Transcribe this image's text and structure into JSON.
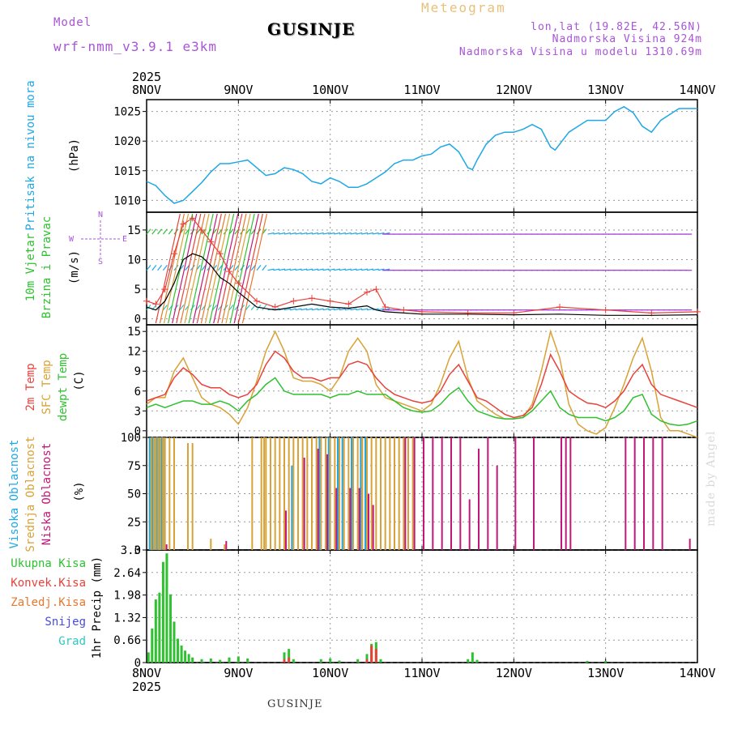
{
  "header": {
    "model_label": "Model",
    "model_name": "wrf-nmm_v3.9.1 e3km",
    "location": "GUSINJE",
    "chart_title": "Meteogram",
    "coords": "lon,lat (19.82E, 42.56N)",
    "altitude": "Nadmorska Visina 924m",
    "model_altitude": "Nadmorska Visina u modelu 1310.69m"
  },
  "footer": {
    "location": "GUSINJE",
    "watermark": "made by Angel"
  },
  "colors": {
    "pressure": "#1ea7e6",
    "wind_speed": "#000000",
    "gust": "#e8413a",
    "temp2m": "#e8413a",
    "sfc": "#d9a236",
    "dew": "#2fc12f",
    "high_cloud": "#1ea7e6",
    "mid_cloud": "#d9a236",
    "low_cloud": "#c2177a",
    "rain_total": "#2fc12f",
    "rain_conv": "#e8413a"
  },
  "chart_data": [
    {
      "type": "line",
      "panel": "pressure",
      "ylabel": [
        "Pritisak na nivou mora",
        "(hPa)"
      ],
      "ylim": [
        1008,
        1027
      ],
      "yticks": [
        1010,
        1015,
        1020,
        1025
      ],
      "x_days": [
        "8NOV",
        "9NOV",
        "10NOV",
        "11NOV",
        "12NOV",
        "13NOV",
        "14NOV"
      ],
      "x_years": [
        "2025",
        "2025"
      ],
      "x": [
        0,
        0.1,
        0.2,
        0.3,
        0.4,
        0.5,
        0.6,
        0.7,
        0.8,
        0.9,
        1.0,
        1.1,
        1.2,
        1.3,
        1.4,
        1.5,
        1.6,
        1.7,
        1.8,
        1.9,
        2.0,
        2.1,
        2.2,
        2.3,
        2.4,
        2.5,
        2.6,
        2.7,
        2.8,
        2.9,
        3.0,
        3.1,
        3.2,
        3.3,
        3.4,
        3.5,
        3.55,
        3.6,
        3.7,
        3.8,
        3.9,
        4.0,
        4.1,
        4.2,
        4.3,
        4.4,
        4.45,
        4.5,
        4.6,
        4.7,
        4.8,
        4.9,
        5.0,
        5.1,
        5.2,
        5.3,
        5.4,
        5.5,
        5.6,
        5.7,
        5.8,
        5.9,
        6.0
      ],
      "series": [
        {
          "values": [
            1013.2,
            1012.5,
            1010.8,
            1009.5,
            1010,
            1011.5,
            1013,
            1014.8,
            1016.2,
            1016.2,
            1016.5,
            1016.8,
            1015.5,
            1014.2,
            1014.5,
            1015.5,
            1015.2,
            1014.5,
            1013.2,
            1012.8,
            1013.8,
            1013.2,
            1012.2,
            1012.2,
            1012.8,
            1013.8,
            1014.8,
            1016.2,
            1016.8,
            1016.8,
            1017.5,
            1017.8,
            1019,
            1019.5,
            1018.2,
            1015.5,
            1015.2,
            1016.8,
            1019.5,
            1021,
            1021.5,
            1021.5,
            1022,
            1022.8,
            1022,
            1019,
            1018.5,
            1019.5,
            1021.5,
            1022.5,
            1023.5,
            1023.5,
            1023.5,
            1025,
            1025.8,
            1024.8,
            1022.5,
            1021.5,
            1023.5,
            1024.5,
            1025.5,
            1025.5,
            1025.5
          ]
        }
      ]
    },
    {
      "type": "line",
      "panel": "wind",
      "ylabel": [
        "10m Vjetar",
        "Brzina i Pravac",
        "(m/s)"
      ],
      "compass": {
        "north": "N",
        "west": "W",
        "east": "E",
        "south": "S"
      },
      "ylim": [
        -1,
        18
      ],
      "yticks": [
        0,
        5,
        10,
        15
      ],
      "x": [
        0,
        0.1,
        0.2,
        0.3,
        0.4,
        0.5,
        0.6,
        0.7,
        0.8,
        0.9,
        1.0,
        1.2,
        1.4,
        1.6,
        1.8,
        2.0,
        2.2,
        2.4,
        2.5,
        2.6,
        2.8,
        3.0,
        3.5,
        4.0,
        4.5,
        5.0,
        5.5,
        6.0
      ],
      "series": [
        {
          "name": "speed",
          "values": [
            2,
            1.5,
            3,
            6,
            10,
            11,
            10.5,
            9,
            7,
            6,
            4.5,
            2,
            1.5,
            2,
            2.5,
            2,
            1.8,
            2.2,
            1.5,
            1.2,
            1,
            0.8,
            0.8,
            0.7,
            0.8,
            0.6,
            0.6,
            0.7
          ]
        },
        {
          "name": "gust",
          "values": [
            3,
            2.5,
            5,
            11,
            16,
            17,
            15,
            13,
            11,
            8,
            6,
            3,
            2,
            3,
            3.5,
            3,
            2.5,
            4.5,
            5,
            2,
            1.5,
            1.2,
            1,
            1,
            2,
            1.5,
            1,
            1.2
          ]
        }
      ]
    },
    {
      "type": "line",
      "panel": "temperature",
      "ylabel": [
        "2m Temp",
        "SFC Temp",
        "dewpt Temp",
        "(C)"
      ],
      "ylim": [
        -1,
        16
      ],
      "yticks": [
        0,
        3,
        6,
        9,
        12,
        15
      ],
      "x": [
        0,
        0.1,
        0.2,
        0.3,
        0.4,
        0.5,
        0.6,
        0.7,
        0.8,
        0.9,
        1.0,
        1.1,
        1.2,
        1.3,
        1.4,
        1.5,
        1.6,
        1.7,
        1.8,
        1.9,
        2.0,
        2.1,
        2.2,
        2.3,
        2.4,
        2.5,
        2.6,
        2.7,
        2.8,
        2.9,
        3.0,
        3.1,
        3.2,
        3.3,
        3.4,
        3.5,
        3.6,
        3.7,
        3.8,
        3.9,
        4.0,
        4.1,
        4.2,
        4.3,
        4.4,
        4.5,
        4.6,
        4.7,
        4.8,
        4.9,
        5.0,
        5.1,
        5.2,
        5.3,
        5.4,
        5.5,
        5.6,
        5.7,
        5.8,
        5.9,
        6.0
      ],
      "series": [
        {
          "name": "2m Temp",
          "values": [
            4.5,
            5,
            5.5,
            8,
            9.5,
            8.5,
            7,
            6.5,
            6.5,
            5.5,
            5,
            5.5,
            7,
            10,
            12,
            11,
            9,
            8,
            8,
            7.5,
            8,
            8,
            10,
            10.5,
            10,
            8,
            6.5,
            5.5,
            5,
            4.5,
            4.2,
            4.5,
            6,
            8.5,
            10,
            7.5,
            5,
            4.5,
            3.5,
            2.5,
            2,
            2.3,
            3.5,
            7,
            11.5,
            9,
            6,
            5,
            4.2,
            4,
            3.5,
            4.5,
            6,
            8.5,
            10,
            7,
            5.5,
            5,
            4.5,
            4,
            3.5
          ]
        },
        {
          "name": "SFC Temp",
          "values": [
            4,
            5,
            5,
            9,
            11,
            8,
            5,
            4,
            3.5,
            2.5,
            1,
            3.5,
            7.5,
            12,
            15,
            12,
            8,
            7.5,
            7.5,
            7,
            6,
            8,
            12,
            14,
            12,
            7,
            5,
            4.5,
            4,
            3.5,
            3,
            4,
            7,
            11,
            13.5,
            8,
            4.5,
            3.5,
            2.5,
            1.8,
            1.8,
            2,
            4,
            9,
            15,
            11,
            4,
            1,
            0,
            -0.5,
            0.5,
            3.5,
            7,
            11,
            14,
            9,
            2,
            0,
            0,
            -0.5,
            -1
          ]
        },
        {
          "name": "dewpt Temp",
          "values": [
            3.5,
            4,
            3.5,
            4,
            4.5,
            4.5,
            4,
            4,
            4.5,
            4,
            3,
            4.5,
            5.5,
            7,
            8,
            6,
            5.5,
            5.5,
            5.5,
            5.5,
            5,
            5.5,
            5.5,
            6,
            5.5,
            5.5,
            5.5,
            4.5,
            3.5,
            3,
            2.8,
            3,
            4,
            5.5,
            6.5,
            4.5,
            3,
            2.5,
            2,
            1.8,
            1.8,
            2,
            3,
            4.5,
            6,
            3.5,
            2.5,
            2,
            2,
            2,
            1.5,
            2,
            3,
            5,
            5.5,
            2.5,
            1.5,
            1,
            0.8,
            1,
            1.5
          ]
        }
      ]
    },
    {
      "type": "bar",
      "panel": "clouds",
      "ylabel": [
        "Visoka Oblacnost",
        "Srednja Oblacnost",
        "Niska Oblacnost",
        "(%)"
      ],
      "ylim": [
        0,
        100
      ],
      "yticks": [
        0,
        25,
        50,
        75,
        100
      ],
      "x": [
        0.05,
        0.08,
        0.1,
        0.13,
        0.15,
        0.18,
        0.2,
        0.25,
        0.3,
        0.45,
        0.5,
        0.7,
        0.85,
        1.15,
        1.25,
        1.28,
        1.3,
        1.35,
        1.4,
        1.45,
        1.5,
        1.55,
        1.6,
        1.65,
        1.7,
        1.75,
        1.8,
        1.85,
        1.9,
        1.95,
        2.0,
        2.05,
        2.1,
        2.15,
        2.2,
        2.25,
        2.3,
        2.35,
        2.4,
        2.45,
        2.5,
        2.55,
        2.6,
        2.65,
        2.7,
        2.75,
        2.8,
        2.85,
        2.9,
        3.0,
        3.1,
        3.2,
        3.3,
        3.4,
        3.5,
        3.6,
        3.7,
        3.8,
        4.0,
        4.2,
        4.5,
        4.55,
        4.6,
        5.2,
        5.3,
        5.4,
        5.5,
        5.6,
        5.9
      ],
      "series": [
        {
          "name": "Visoka Oblacnost",
          "values": [
            100,
            100,
            100,
            100,
            100,
            100,
            100,
            0,
            0,
            0,
            0,
            0,
            0,
            0,
            0,
            0,
            0,
            0,
            0,
            0,
            0,
            0,
            75,
            0,
            0,
            0,
            0,
            0,
            100,
            0,
            100,
            0,
            100,
            100,
            0,
            100,
            0,
            100,
            100,
            0,
            0,
            0,
            0,
            0,
            0,
            0,
            0,
            0,
            0,
            0,
            0,
            0,
            0,
            0,
            0,
            0,
            0,
            0,
            0,
            0,
            0,
            0,
            0,
            0,
            0,
            0,
            0,
            0,
            0
          ]
        },
        {
          "name": "Srednja Oblacnost",
          "values": [
            100,
            100,
            100,
            100,
            100,
            100,
            100,
            100,
            100,
            95,
            95,
            10,
            5,
            100,
            100,
            100,
            100,
            100,
            100,
            100,
            100,
            100,
            100,
            100,
            100,
            100,
            100,
            100,
            100,
            100,
            100,
            100,
            100,
            100,
            100,
            100,
            100,
            100,
            100,
            100,
            100,
            100,
            100,
            100,
            100,
            100,
            100,
            100,
            100,
            0,
            0,
            0,
            0,
            0,
            0,
            0,
            0,
            0,
            0,
            0,
            0,
            0,
            0,
            0,
            0,
            0,
            0,
            0,
            0
          ]
        },
        {
          "name": "Niska Oblacnost",
          "values": [
            0,
            0,
            0,
            0,
            0,
            0,
            5,
            0,
            0,
            0,
            0,
            0,
            8,
            0,
            0,
            0,
            0,
            0,
            0,
            0,
            35,
            0,
            0,
            0,
            82,
            0,
            0,
            90,
            0,
            85,
            0,
            55,
            0,
            0,
            55,
            0,
            55,
            0,
            50,
            40,
            0,
            0,
            0,
            0,
            0,
            0,
            100,
            0,
            100,
            100,
            100,
            100,
            100,
            100,
            45,
            90,
            100,
            75,
            100,
            100,
            100,
            100,
            100,
            100,
            100,
            100,
            100,
            100,
            10
          ]
        }
      ]
    },
    {
      "type": "bar",
      "panel": "precip",
      "ylabel": "1hr Precip (mm)",
      "legend": [
        "Ukupna Kisa",
        "Konvek.Kisa",
        "Zaledj.Kisa",
        "Snijeg",
        "Grad"
      ],
      "ylim": [
        0,
        3.3
      ],
      "yticks": [
        0,
        0.66,
        1.32,
        1.98,
        2.64,
        3.3
      ],
      "x": [
        0.02,
        0.06,
        0.1,
        0.14,
        0.18,
        0.22,
        0.26,
        0.3,
        0.34,
        0.38,
        0.42,
        0.46,
        0.5,
        0.6,
        0.7,
        0.8,
        0.9,
        1.0,
        1.1,
        1.5,
        1.55,
        1.6,
        1.9,
        2.0,
        2.1,
        2.3,
        2.4,
        2.45,
        2.5,
        2.55,
        3.5,
        3.55,
        3.6,
        4.8,
        5.0
      ],
      "series": [
        {
          "name": "Ukupna Kisa",
          "values": [
            0.3,
            1.0,
            1.85,
            2.05,
            2.95,
            3.2,
            2.0,
            1.2,
            0.7,
            0.5,
            0.35,
            0.25,
            0.15,
            0.1,
            0.12,
            0.08,
            0.15,
            0.18,
            0.12,
            0.3,
            0.4,
            0.1,
            0.1,
            0.12,
            0.06,
            0.1,
            0.25,
            0.55,
            0.6,
            0.1,
            0.1,
            0.3,
            0.08,
            0.05,
            0.05
          ]
        },
        {
          "name": "Konvek.Kisa",
          "values": [
            0,
            0,
            0,
            0,
            0,
            0,
            0,
            0,
            0,
            0,
            0,
            0,
            0,
            0,
            0,
            0,
            0,
            0,
            0,
            0.1,
            0.15,
            0,
            0,
            0,
            0,
            0,
            0.1,
            0.5,
            0.4,
            0,
            0,
            0,
            0,
            0,
            0
          ]
        }
      ]
    }
  ]
}
